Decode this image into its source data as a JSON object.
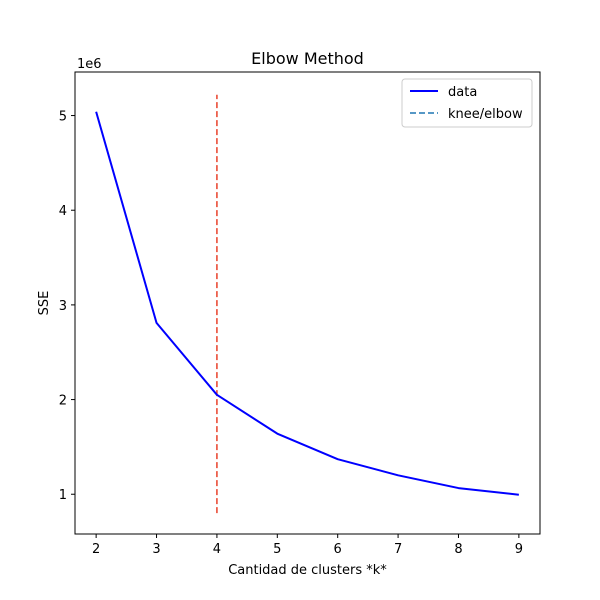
{
  "chart_data": {
    "type": "line",
    "title": "Elbow Method",
    "xlabel": "Cantidad de clusters *k*",
    "ylabel": "SSE",
    "y_offset_label": "1e6",
    "y_multiplier": 1000000,
    "xlim": [
      1.65,
      9.35
    ],
    "ylim": [
      580000,
      5460000
    ],
    "xticks": [
      2,
      3,
      4,
      5,
      6,
      7,
      8,
      9
    ],
    "yticks": [
      1000000,
      2000000,
      3000000,
      4000000,
      5000000
    ],
    "ytick_labels": [
      "1",
      "2",
      "3",
      "4",
      "5"
    ],
    "grid": false,
    "legend_position": "top-right",
    "series": [
      {
        "name": "data",
        "color": "#0000ff",
        "style": "solid",
        "x": [
          2,
          3,
          4,
          5,
          6,
          7,
          8,
          9
        ],
        "y": [
          5040000,
          2810000,
          2050000,
          1640000,
          1370000,
          1200000,
          1065000,
          995000
        ]
      }
    ],
    "knee": {
      "name": "knee/elbow",
      "x": 4,
      "y_range": [
        800000,
        5220000
      ],
      "color": "#e8402a",
      "legend_color": "#1f77b4",
      "style": "dashed"
    }
  }
}
